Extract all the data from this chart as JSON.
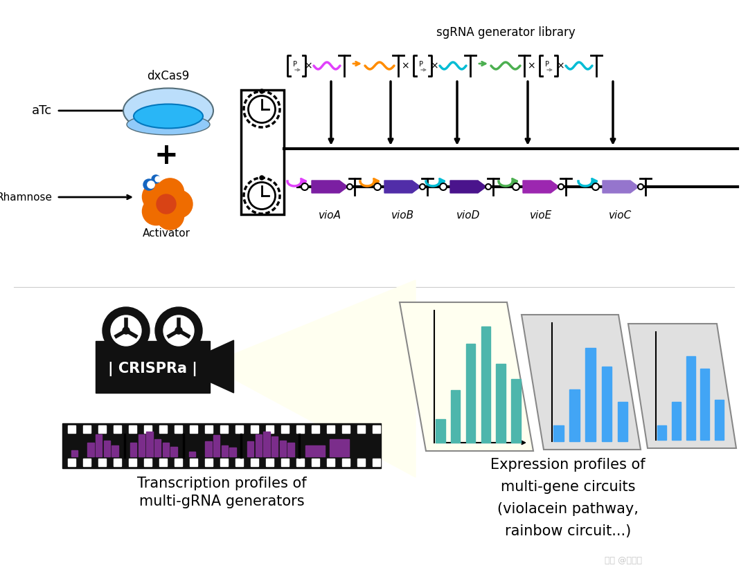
{
  "bg_color": "#ffffff",
  "fig_w": 10.8,
  "fig_h": 8.27,
  "dpi": 100,
  "top": {
    "atc_label": "aTc",
    "rhamnose_label": "Rhamnose",
    "dxcas9_label": "dxCas9",
    "activator_label": "Activator",
    "sgrna_label": "sgRNA generator library",
    "gene_labels": [
      "vioA",
      "vioB",
      "vioD",
      "vioE",
      "vioC"
    ],
    "promo_colors": [
      "#e040fb",
      "#ff8c00",
      "#00bcd4",
      "#4caf50",
      "#00bcd4"
    ],
    "gene_colors": [
      "#7b1fa2",
      "#512da8",
      "#4a148c",
      "#9c27b0",
      "#9575cd"
    ],
    "timer_color": "#111111",
    "box_color": "#111111",
    "line_color": "#111111"
  },
  "bottom": {
    "camera_color": "#111111",
    "camera_label": "CRISPRa",
    "film_color": "#111111",
    "bar_color_film": "#7b2d8b",
    "beam_color": "#fffff0",
    "panel1_bg": "#fffff0",
    "panel2_bg": "#e0e0e0",
    "panel3_bg": "#e0e0e0",
    "bar_color1": "#4db6ac",
    "bar_color2": "#42a5f5",
    "bar_color3": "#42a5f5",
    "text1a": "Transcription profiles of",
    "text1b": "multi-gRNA generators",
    "text2a": "Expression profiles of",
    "text2b": "multi-gene circuits",
    "text2c": "(violacein pathway,",
    "text2d": "rainbow circuit...)"
  }
}
